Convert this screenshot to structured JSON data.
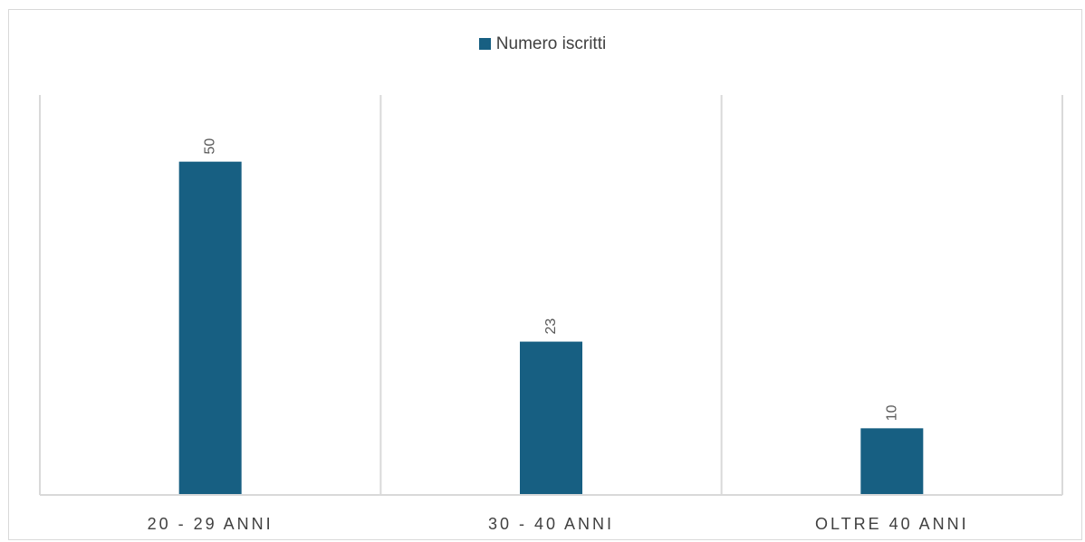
{
  "chart_data": {
    "type": "bar",
    "categories": [
      "20 - 29 ANNI",
      "30 - 40 ANNI",
      "OLTRE 40 ANNI"
    ],
    "series": [
      {
        "name": "Numero iscritti",
        "values": [
          50,
          23,
          10
        ],
        "color": "#175f82"
      }
    ],
    "data_labels": [
      "50",
      "23",
      "10"
    ],
    "legend": {
      "position": "top"
    },
    "ylim": [
      0,
      60
    ],
    "grid": false,
    "category_separators": true
  }
}
